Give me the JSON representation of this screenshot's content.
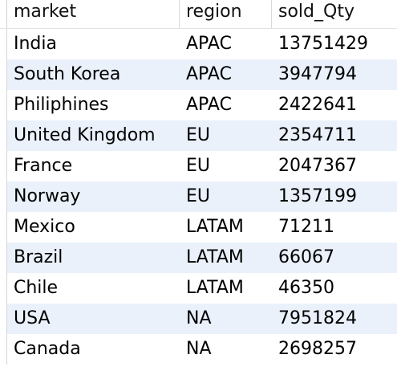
{
  "result_grid": {
    "columns": [
      "market",
      "region",
      "sold_Qty"
    ],
    "rows": [
      [
        "India",
        "APAC",
        "13751429"
      ],
      [
        "South Korea",
        "APAC",
        "3947794"
      ],
      [
        "Philiphines",
        "APAC",
        "2422641"
      ],
      [
        "United Kingdom",
        "EU",
        "2354711"
      ],
      [
        "France",
        "EU",
        "2047367"
      ],
      [
        "Norway",
        "EU",
        "1357199"
      ],
      [
        "Mexico",
        "LATAM",
        "71211"
      ],
      [
        "Brazil",
        "LATAM",
        "66067"
      ],
      [
        "Chile",
        "LATAM",
        "46350"
      ],
      [
        "USA",
        "NA",
        "7951824"
      ],
      [
        "Canada",
        "NA",
        "2698257"
      ]
    ],
    "colors": {
      "odd_row_bg": "#eaf1fb",
      "even_row_bg": "#ffffff",
      "text": "#000000"
    }
  }
}
